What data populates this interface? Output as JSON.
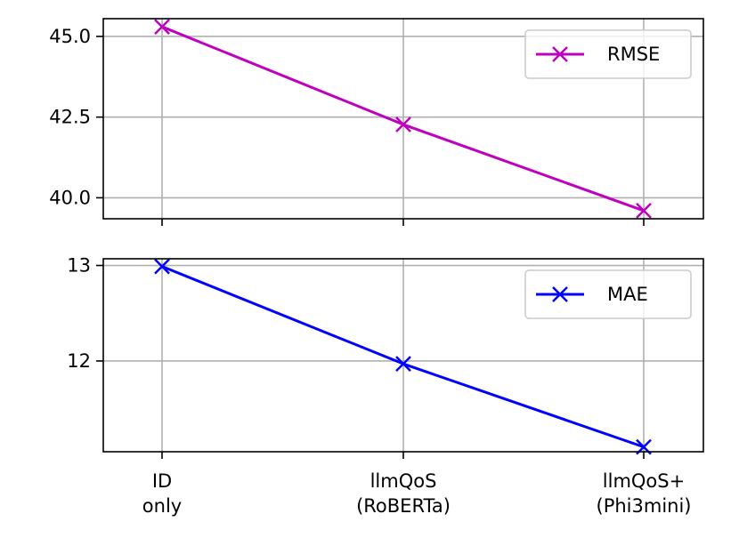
{
  "chart_data": [
    {
      "type": "line",
      "categories": [
        "ID\nonly",
        "llmQoS\n(RoBERTa)",
        "llmQoS+\n(Phi3mini)"
      ],
      "series": [
        {
          "name": "RMSE",
          "values": [
            45.3,
            42.27,
            39.6
          ],
          "color": "#bf00bf",
          "marker": "x"
        }
      ],
      "yticks": [
        "40.0",
        "42.5",
        "45.0"
      ],
      "ylim": [
        39.35,
        45.55
      ],
      "grid": true,
      "legend_position": "top-right",
      "show_x_tick_labels": false
    },
    {
      "type": "line",
      "categories": [
        "ID\nonly",
        "llmQoS\n(RoBERTa)",
        "llmQoS+\n(Phi3mini)"
      ],
      "series": [
        {
          "name": "MAE",
          "values": [
            12.99,
            11.97,
            11.1
          ],
          "color": "#0000ff",
          "marker": "x"
        }
      ],
      "yticks": [
        "12",
        "13"
      ],
      "ylim": [
        11.05,
        13.07
      ],
      "grid": true,
      "legend_position": "top-right",
      "show_x_tick_labels": true
    }
  ]
}
